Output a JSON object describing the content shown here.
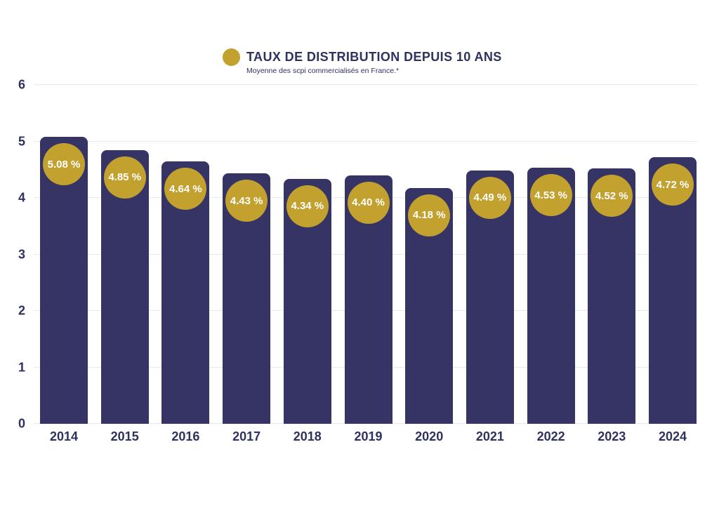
{
  "header": {
    "title": "TAUX DE DISTRIBUTION DEPUIS 10 ANS",
    "subtitle": "Moyenne des scpi commercialisés en France.*",
    "bullet_icon": "gold-circle"
  },
  "colors": {
    "bar_navy": "#363365",
    "text_navy": "#2f3161",
    "accent_gold": "#c2a12f",
    "gridline": "#e8e8ef",
    "value_label_text": "#ffffff",
    "background": "#ffffff"
  },
  "chart_data": {
    "type": "bar",
    "title": "TAUX DE DISTRIBUTION DEPUIS 10 ANS",
    "subtitle": "Moyenne des scpi commercialisés en France.*",
    "categories": [
      "2014",
      "2015",
      "2016",
      "2017",
      "2018",
      "2019",
      "2020",
      "2021",
      "2022",
      "2023",
      "2024"
    ],
    "values": [
      5.08,
      4.85,
      4.64,
      4.43,
      4.34,
      4.4,
      4.18,
      4.49,
      4.53,
      4.52,
      4.72
    ],
    "value_labels": [
      "5.08 %",
      "4.85 %",
      "4.64 %",
      "4.43 %",
      "4.34 %",
      "4.40 %",
      "4.18 %",
      "4.49 %",
      "4.53 %",
      "4.52 %",
      "4.72 %"
    ],
    "xlabel": "",
    "ylabel": "",
    "ylim": [
      0,
      6
    ],
    "yticks": [
      0,
      1,
      2,
      3,
      4,
      5,
      6
    ],
    "grid": true,
    "legend_position": "none",
    "bar_label_style": "gold-circle-on-bar-top"
  }
}
